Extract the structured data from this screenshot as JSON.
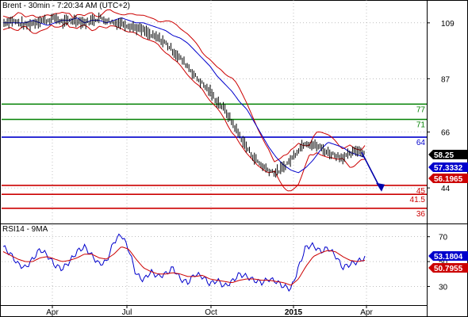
{
  "header": {
    "symbol": "Brent",
    "timeframe": "30min",
    "time": "7:20:34 AM (UTC+2)",
    "title": "Brent - 30min - 7:20:34 AM (UTC+2)"
  },
  "indicator": {
    "title": "RSI14 - 9MA"
  },
  "chart_data": [
    {
      "type": "line",
      "panel": "price",
      "title": "Brent - 30min - 7:20:34 AM (UTC+2)",
      "x_tick_labels": [
        "Apr",
        "Jul",
        "Oct",
        "2015",
        "Apr"
      ],
      "y_tick_labels": [
        "109",
        "87",
        "66",
        "44"
      ],
      "y_ticks": [
        109,
        87,
        66,
        44
      ],
      "grid": true,
      "series": [
        {
          "values": [
            109,
            110,
            109,
            108,
            109,
            110,
            110,
            111,
            109,
            110,
            110,
            109,
            110,
            111,
            110,
            109,
            109,
            108,
            107,
            106,
            104,
            103,
            101,
            98,
            95,
            92,
            88,
            85,
            82,
            78,
            75,
            70,
            65,
            60,
            56,
            53,
            51,
            50,
            52,
            55,
            59,
            62,
            61,
            60,
            58,
            57,
            56,
            57,
            59,
            58
          ]
        }
      ],
      "horizontal_lines": [
        {
          "value": 77,
          "label": "77",
          "color": "#008000"
        },
        {
          "value": 71,
          "label": "71",
          "color": "#008000"
        },
        {
          "value": 64,
          "label": "64",
          "color": "#0000cc"
        },
        {
          "value": 45,
          "label": "45",
          "color": "#cc0000"
        },
        {
          "value": 41.5,
          "label": "41.5",
          "color": "#cc0000"
        },
        {
          "value": 36,
          "label": "36",
          "color": "#cc0000"
        }
      ],
      "value_badges": [
        {
          "label": "58.25",
          "bg": "#000000",
          "fg": "#ffffff"
        },
        {
          "label": "57.3332",
          "bg": "#0000cc",
          "fg": "#ffffff"
        },
        {
          "label": "56.1965",
          "bg": "#cc0000",
          "fg": "#ffffff"
        }
      ]
    },
    {
      "type": "line",
      "panel": "rsi",
      "title": "RSI14 - 9MA",
      "y_tick_labels": [
        "70",
        "50",
        "30"
      ],
      "y_ticks": [
        70,
        50,
        30
      ],
      "series": [
        {
          "values": [
            62,
            56,
            48,
            45,
            52,
            60,
            55,
            47,
            44,
            50,
            58,
            62,
            55,
            48,
            50,
            66,
            72,
            60,
            40,
            35,
            42,
            38,
            40,
            45,
            36,
            33,
            40,
            38,
            32,
            35,
            30,
            34,
            40,
            38,
            35,
            33,
            36,
            34,
            30,
            28,
            45,
            62,
            63,
            58,
            61,
            55,
            45,
            48,
            50,
            53
          ]
        },
        {
          "values": [
            58,
            55,
            52,
            50,
            50,
            53,
            54,
            52,
            50,
            51,
            53,
            56,
            56,
            53,
            52,
            56,
            62,
            60,
            52,
            45,
            42,
            40,
            40,
            41,
            40,
            38,
            38,
            39,
            36,
            35,
            34,
            33,
            35,
            36,
            36,
            35,
            35,
            34,
            33,
            31,
            36,
            46,
            54,
            57,
            59,
            58,
            54,
            51,
            50,
            51
          ]
        }
      ],
      "value_badges": [
        {
          "label": "53.1804",
          "bg": "#0000cc",
          "fg": "#ffffff"
        },
        {
          "label": "50.7955",
          "bg": "#cc0000",
          "fg": "#ffffff"
        }
      ]
    }
  ]
}
